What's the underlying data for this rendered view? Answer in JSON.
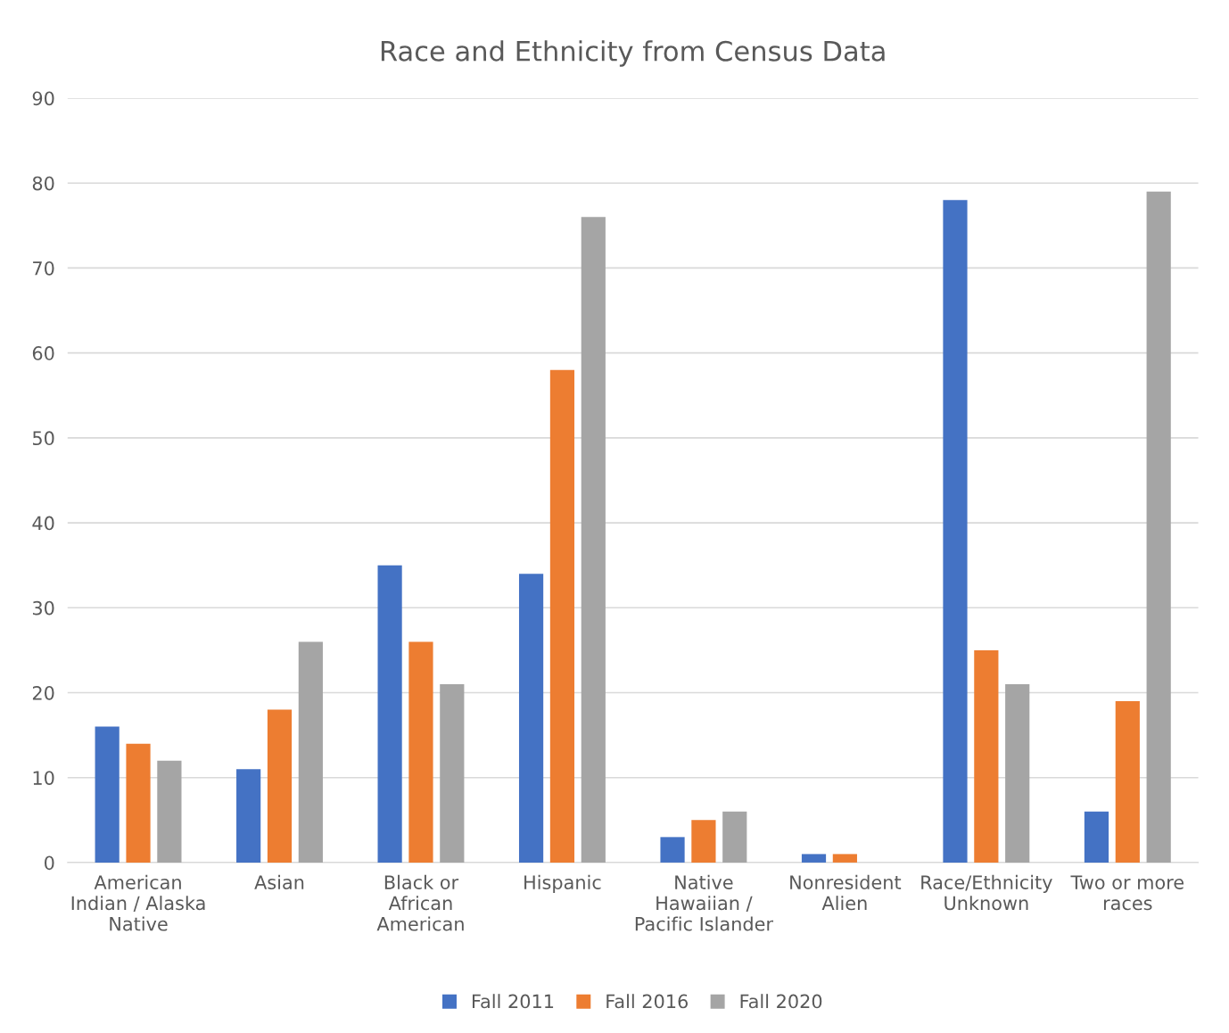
{
  "chart_data": {
    "type": "bar",
    "title": "Race and Ethnicity from Census Data",
    "categories": [
      "American\nIndian / Alaska\nNative",
      "Asian",
      "Black or\nAfrican\nAmerican",
      "Hispanic",
      "Native\nHawaiian /\nPacific Islander",
      "Nonresident\nAlien",
      "Race/Ethnicity\nUnknown",
      "Two or more\nraces"
    ],
    "series": [
      {
        "name": "Fall 2011",
        "color": "#4472c4",
        "values": [
          16,
          11,
          35,
          34,
          3,
          1,
          78,
          6
        ]
      },
      {
        "name": "Fall 2016",
        "color": "#ed7d31",
        "values": [
          14,
          18,
          26,
          58,
          5,
          1,
          25,
          19
        ]
      },
      {
        "name": "Fall 2020",
        "color": "#a5a5a5",
        "values": [
          12,
          26,
          21,
          76,
          6,
          0,
          21,
          79
        ]
      }
    ],
    "ylim": [
      0,
      90
    ],
    "yticks": [
      0,
      10,
      20,
      30,
      40,
      50,
      60,
      70,
      80,
      90
    ],
    "grid": "y",
    "legend": "bottom"
  }
}
